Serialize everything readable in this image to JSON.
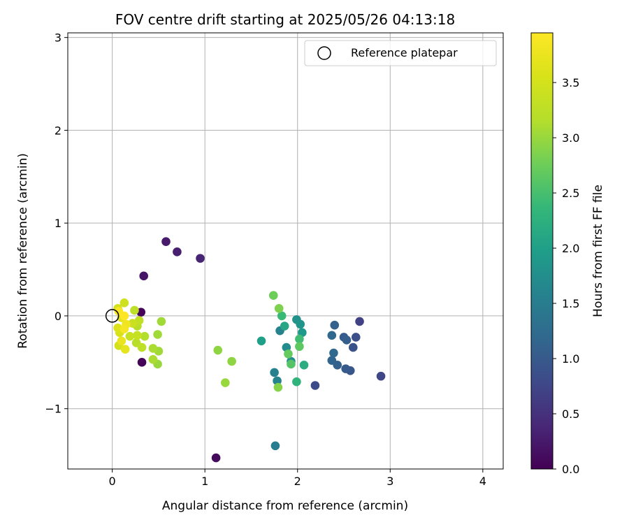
{
  "chart_data": {
    "type": "scatter",
    "title": "FOV centre drift starting at 2025/05/26 04:13:18",
    "xlabel": "Angular distance from reference (arcmin)",
    "ylabel": "Rotation from reference (arcmin)",
    "xlim": [
      -0.48,
      4.22
    ],
    "ylim": [
      -1.65,
      3.05
    ],
    "xticks": [
      "0",
      "1",
      "2",
      "3",
      "4"
    ],
    "yticks": [
      "−1",
      "0",
      "1",
      "2",
      "3"
    ],
    "grid": true,
    "legend": {
      "placement": "top-right",
      "entries": [
        "Reference platepar"
      ]
    },
    "reference_point": {
      "x": 0.0,
      "y": 0.0
    },
    "colorbar": {
      "label": "Hours from first FF file",
      "colormap": "viridis",
      "range": [
        0.0,
        3.95
      ],
      "ticks": [
        "0.0",
        "0.5",
        "1.0",
        "1.5",
        "2.0",
        "2.5",
        "3.0",
        "3.5"
      ]
    },
    "points": [
      {
        "x": 0.31,
        "y": 0.04,
        "c": 0.05
      },
      {
        "x": 0.32,
        "y": -0.5,
        "c": 0.05
      },
      {
        "x": 1.12,
        "y": -1.53,
        "c": 0.1
      },
      {
        "x": 0.34,
        "y": 0.43,
        "c": 0.2
      },
      {
        "x": 0.58,
        "y": 0.8,
        "c": 0.25
      },
      {
        "x": 0.7,
        "y": 0.69,
        "c": 0.3
      },
      {
        "x": 0.95,
        "y": 0.62,
        "c": 0.35
      },
      {
        "x": 2.67,
        "y": -0.06,
        "c": 0.7
      },
      {
        "x": 2.9,
        "y": -0.65,
        "c": 0.75
      },
      {
        "x": 2.19,
        "y": -0.75,
        "c": 0.8
      },
      {
        "x": 2.63,
        "y": -0.23,
        "c": 0.85
      },
      {
        "x": 2.6,
        "y": -0.34,
        "c": 0.9
      },
      {
        "x": 2.57,
        "y": -0.59,
        "c": 0.95
      },
      {
        "x": 2.52,
        "y": -0.57,
        "c": 1.0
      },
      {
        "x": 2.5,
        "y": -0.23,
        "c": 1.0
      },
      {
        "x": 2.53,
        "y": -0.26,
        "c": 1.05
      },
      {
        "x": 2.43,
        "y": -0.53,
        "c": 1.1
      },
      {
        "x": 2.4,
        "y": -0.1,
        "c": 1.1
      },
      {
        "x": 2.37,
        "y": -0.48,
        "c": 1.15
      },
      {
        "x": 2.39,
        "y": -0.4,
        "c": 1.2
      },
      {
        "x": 2.37,
        "y": -0.21,
        "c": 1.2
      },
      {
        "x": 1.76,
        "y": -1.4,
        "c": 1.5
      },
      {
        "x": 1.75,
        "y": -0.61,
        "c": 1.55
      },
      {
        "x": 1.78,
        "y": -0.7,
        "c": 1.6
      },
      {
        "x": 1.81,
        "y": -0.16,
        "c": 1.6
      },
      {
        "x": 1.88,
        "y": -0.34,
        "c": 1.7
      },
      {
        "x": 1.93,
        "y": -0.49,
        "c": 1.75
      },
      {
        "x": 1.99,
        "y": -0.04,
        "c": 1.8
      },
      {
        "x": 2.03,
        "y": -0.09,
        "c": 1.85
      },
      {
        "x": 2.05,
        "y": -0.18,
        "c": 1.9
      },
      {
        "x": 1.61,
        "y": -0.27,
        "c": 2.0
      },
      {
        "x": 1.86,
        "y": -0.11,
        "c": 2.1
      },
      {
        "x": 2.07,
        "y": -0.53,
        "c": 2.2
      },
      {
        "x": 1.99,
        "y": -0.71,
        "c": 2.3
      },
      {
        "x": 1.83,
        "y": 0.0,
        "c": 2.4
      },
      {
        "x": 2.02,
        "y": -0.25,
        "c": 2.45
      },
      {
        "x": 1.93,
        "y": -0.52,
        "c": 2.6
      },
      {
        "x": 2.02,
        "y": -0.33,
        "c": 2.65
      },
      {
        "x": 1.9,
        "y": -0.41,
        "c": 2.7
      },
      {
        "x": 1.74,
        "y": 0.22,
        "c": 2.75
      },
      {
        "x": 1.8,
        "y": 0.08,
        "c": 2.85
      },
      {
        "x": 1.79,
        "y": -0.77,
        "c": 2.9
      },
      {
        "x": 1.14,
        "y": -0.37,
        "c": 2.95
      },
      {
        "x": 1.29,
        "y": -0.49,
        "c": 2.95
      },
      {
        "x": 1.22,
        "y": -0.72,
        "c": 3.0
      },
      {
        "x": 0.49,
        "y": -0.52,
        "c": 3.0
      },
      {
        "x": 0.53,
        "y": -0.06,
        "c": 3.05
      },
      {
        "x": 0.49,
        "y": -0.2,
        "c": 3.05
      },
      {
        "x": 0.5,
        "y": -0.38,
        "c": 3.05
      },
      {
        "x": 0.44,
        "y": -0.47,
        "c": 3.1
      },
      {
        "x": 0.44,
        "y": -0.35,
        "c": 3.1
      },
      {
        "x": 0.35,
        "y": -0.22,
        "c": 3.15
      },
      {
        "x": 0.27,
        "y": -0.11,
        "c": 3.2
      },
      {
        "x": 0.26,
        "y": -0.29,
        "c": 3.2
      },
      {
        "x": 0.24,
        "y": 0.06,
        "c": 3.25
      },
      {
        "x": 0.32,
        "y": -0.34,
        "c": 3.25
      },
      {
        "x": 0.29,
        "y": -0.05,
        "c": 3.3
      },
      {
        "x": 0.27,
        "y": -0.21,
        "c": 3.35
      },
      {
        "x": 0.19,
        "y": -0.22,
        "c": 3.35
      },
      {
        "x": 0.22,
        "y": -0.08,
        "c": 3.4
      },
      {
        "x": 0.13,
        "y": 0.14,
        "c": 3.45
      },
      {
        "x": 0.06,
        "y": 0.08,
        "c": 3.5
      },
      {
        "x": 0.07,
        "y": -0.32,
        "c": 3.5
      },
      {
        "x": 0.08,
        "y": -0.18,
        "c": 3.55
      },
      {
        "x": 0.06,
        "y": -0.13,
        "c": 3.6
      },
      {
        "x": 0.1,
        "y": -0.02,
        "c": 3.65
      },
      {
        "x": 0.14,
        "y": -0.36,
        "c": 3.7
      },
      {
        "x": 0.1,
        "y": -0.27,
        "c": 3.75
      },
      {
        "x": 0.15,
        "y": -0.09,
        "c": 3.8
      },
      {
        "x": 0.13,
        "y": -0.14,
        "c": 3.85
      },
      {
        "x": 0.07,
        "y": 0.05,
        "c": 3.9
      },
      {
        "x": 0.13,
        "y": 0.0,
        "c": 3.95
      }
    ]
  }
}
